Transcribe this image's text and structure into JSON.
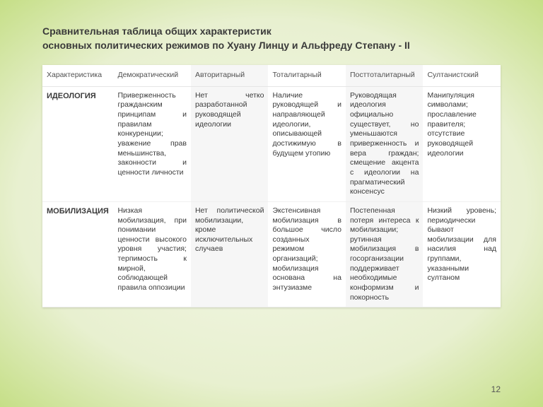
{
  "title_line1": "Сравнительная таблица общих характеристик",
  "title_line2": "основных политических режимов по Хуану Линцу и Альфреду Степану - II",
  "columns": [
    "Характеристика",
    "Демократический",
    "Авторитарный",
    "Тоталитарный",
    "Посттоталитарный",
    "Султанистский"
  ],
  "rows": [
    {
      "label": "ИДЕОЛОГИЯ",
      "cells": [
        "Приверженность гражданским принципам и правилам конкуренции; уважение прав меньшинства, законности и ценности личности",
        "Нет четко разработанной руководящей идеологии",
        "Наличие руководящей и направляющей идеологии, описывающей достижимую в будущем утопию",
        "Руководящая идеология официально существует, но уменьшаются приверженность и вера граждан; смещение акцента с идеологии на прагматический консенсус",
        "Манипуляция символами; прославление правителя; отсутствие руководящей идеологии"
      ]
    },
    {
      "label": "МОБИЛИЗАЦИЯ",
      "cells": [
        "Низкая мобилизация, при понимании ценности высокого уровня участия; терпимость к мирной, соблюдающей правила оппозиции",
        "Нет политической мобилизации, кроме исключительных случаев",
        "Экстенсивная мобилизация в большое число созданных режимом организаций; мобилизация основана на энтузиазме",
        "Постепенная потеря интереса к мобилизации; рутинная мобилизация в госорганизации поддерживает необходимые конформизм и покорность",
        "Низкий уровень; периодически бывают мобилизации для насилия над группами, указанными султаном"
      ]
    }
  ],
  "shaded_cols": [
    2,
    4
  ],
  "page_number": "12",
  "colors": {
    "bg_inner": "#f4f8e8",
    "bg_outer": "#8ec440",
    "text": "#3a3a3a",
    "shade": "#f6f6f6"
  }
}
